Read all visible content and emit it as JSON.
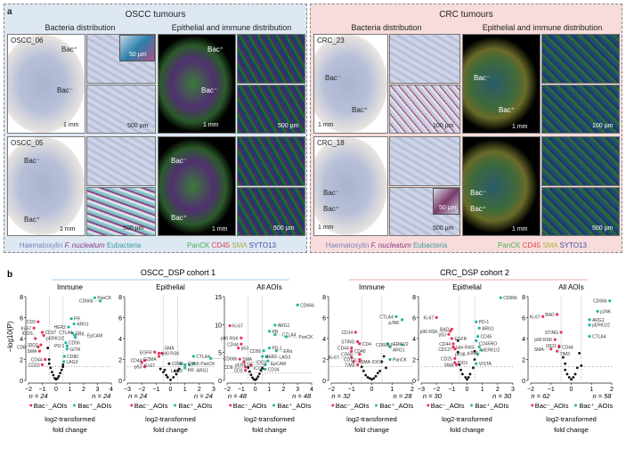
{
  "panel_a": {
    "label": "a",
    "oscc": {
      "title": "OSCC tumours",
      "col1": "Bacteria distribution",
      "col2": "Epithelial and immune distribution",
      "rows": [
        {
          "sample": "OSCC_06",
          "bac_pos": "Bac⁺",
          "bac_neg": "Bac⁻",
          "scale_overview": "1 mm",
          "scale_zoom": "500 µm",
          "scale_inset": "50 µm"
        },
        {
          "sample": "OSCC_05",
          "bac_pos": "Bac⁺",
          "bac_neg": "Bac⁻",
          "scale_overview": "1 mm",
          "scale_zoom": "500 µm"
        }
      ],
      "legend_left": [
        "Haematoxylin",
        "F. nucleatum",
        "Eubacteria"
      ],
      "legend_right": [
        "PanCK",
        "CD45",
        "SMA",
        "SYTO13"
      ]
    },
    "crc": {
      "title": "CRC tumours",
      "col1": "Bacteria distribution",
      "col2": "Epithelial and immune distribution",
      "rows": [
        {
          "sample": "CRC_23",
          "bac_pos": "Bac⁺",
          "bac_neg": "Bac⁻",
          "scale_overview": "1 mm",
          "scale_zoom": "100 µm"
        },
        {
          "sample": "CRC_18",
          "bac_pos": "Bac⁺",
          "bac_neg": "Bac⁻",
          "scale_overview": "1 mm",
          "scale_zoom": "500 µm",
          "scale_inset": "50 µm"
        }
      ],
      "legend_left": [
        "Haematoxylin",
        "F. nucleatum",
        "Eubacteria"
      ],
      "legend_right": [
        "PanCK",
        "CD45",
        "SMA",
        "SYTO13"
      ]
    },
    "colors": {
      "haematoxylin": "#7b80b8",
      "fnucleatum": "#8a3a8a",
      "eubacteria": "#3a9c9c",
      "panck": "#4caf50",
      "cd45": "#e04545",
      "sma": "#b0b040",
      "syto13": "#4050a0",
      "oscc_bg": "#dde8f3",
      "crc_bg": "#f8dcdc"
    }
  },
  "panel_b": {
    "label": "b",
    "cohort1": "OSCC_DSP cohort 1",
    "cohort2": "CRC_DSP cohort 2",
    "ylabel": "−log10(P)",
    "xlabel1": "log2-transformed",
    "xlabel2": "fold change",
    "legend_neg": "Bac⁻_AOIs",
    "legend_pos": "Bac⁺_AOIs",
    "colors": {
      "neg": "#e8335a",
      "pos": "#1fb5a5",
      "ns": "#111111"
    }
  },
  "chart_data": [
    {
      "type": "scatter",
      "title": "Immune",
      "xlim": [
        -2,
        4
      ],
      "ylim": [
        0,
        8
      ],
      "xticks": [
        -2,
        -1,
        0,
        1,
        2,
        3,
        4
      ],
      "yticks": [
        0,
        2,
        4,
        6,
        8
      ],
      "n_neg": "n = 24",
      "n_pos": "n = 24",
      "pos": [
        [
          "PanCK",
          2.8,
          7.9
        ],
        [
          "CD66b",
          3.2,
          7.6
        ],
        [
          "PR",
          1.1,
          5.9
        ],
        [
          "ARG1",
          1.3,
          5.4
        ],
        [
          "HER2",
          0.9,
          5.1
        ],
        [
          "ERα",
          1.2,
          4.5
        ],
        [
          "EpCAM",
          1.35,
          4.3
        ],
        [
          "CTLA4",
          1.4,
          4.1
        ],
        [
          "CD56",
          0.7,
          3.6
        ],
        [
          "PD-1",
          0.8,
          3.3
        ],
        [
          "GITR",
          0.8,
          3.0
        ],
        [
          "CD80",
          0.6,
          2.3
        ],
        [
          "LAG3",
          0.55,
          1.8
        ]
      ],
      "neg": [
        [
          "CD3",
          -1.3,
          5.6
        ],
        [
          "Ki-67",
          -1.6,
          5.0
        ],
        [
          "CD27",
          -1.0,
          4.6
        ],
        [
          "pERK1/2",
          -0.9,
          4.3
        ],
        [
          "ICOS",
          -1.5,
          4.0
        ],
        [
          "IDO1",
          -1.1,
          3.4
        ],
        [
          "CD8",
          -1.3,
          3.2
        ],
        [
          "SMA",
          -1.2,
          2.8
        ],
        [
          "CD44",
          -0.8,
          2.0
        ],
        [
          "CD20",
          -1.0,
          1.5
        ]
      ],
      "ns": [
        [
          -0.6,
          3.1
        ],
        [
          -0.5,
          2.0
        ],
        [
          -0.5,
          1.6
        ],
        [
          -0.4,
          1.2
        ],
        [
          -0.3,
          0.8
        ],
        [
          -0.2,
          0.5
        ],
        [
          -0.1,
          0.2
        ],
        [
          0,
          0.1
        ],
        [
          0.1,
          0.2
        ],
        [
          0.2,
          0.4
        ],
        [
          0.3,
          0.7
        ],
        [
          0.4,
          1.0
        ],
        [
          0.5,
          1.3
        ],
        [
          0.5,
          1.5
        ]
      ]
    },
    {
      "type": "scatter",
      "title": "Epithelial",
      "xlim": [
        -3,
        3
      ],
      "ylim": [
        0,
        8
      ],
      "xticks": [
        -3,
        -2,
        -1,
        0,
        1,
        2,
        3
      ],
      "yticks": [
        0,
        2,
        4,
        6,
        8
      ],
      "n_neg": "n = 24",
      "n_pos": "n = 24",
      "pos": [
        [
          "CD56",
          0.7,
          1.6
        ],
        [
          "PR",
          1.0,
          1.5
        ],
        [
          "CTLA4",
          1.6,
          2.3
        ],
        [
          "CD66b",
          2.8,
          2.1
        ],
        [
          "ARG1",
          1.3,
          1.5
        ],
        [
          "PanCK",
          1.6,
          1.6
        ],
        [
          "LAG3",
          1.0,
          1.2
        ]
      ],
      "neg": [
        [
          "EGFR",
          -1.1,
          2.7
        ],
        [
          "p90 RSK",
          -0.8,
          2.6
        ],
        [
          "SMA",
          -0.6,
          2.6
        ],
        [
          "GZMA",
          -0.8,
          2.3
        ],
        [
          "CD44",
          -1.8,
          1.9
        ],
        [
          "Ki-67",
          -2.0,
          1.7
        ],
        [
          "p53",
          -1.8,
          1.3
        ]
      ],
      "ns": [
        [
          "CD68",
          -0.1,
          1.6
        ],
        [
          -0.7,
          1.1
        ],
        [
          -0.5,
          0.8
        ],
        [
          -0.3,
          0.5
        ],
        [
          -0.2,
          0.3
        ],
        [
          0,
          0.05
        ],
        [
          0.2,
          0.3
        ],
        [
          0.4,
          0.6
        ],
        [
          0.5,
          0.9
        ],
        [
          0.6,
          1.1
        ],
        [
          0.3,
          0.9
        ],
        [
          -0.4,
          1.0
        ]
      ]
    },
    {
      "type": "scatter",
      "title": "All AOIs",
      "xlim": [
        -2,
        4
      ],
      "ylim": [
        0,
        15
      ],
      "xticks": [
        -2,
        -1,
        0,
        1,
        2,
        3,
        4
      ],
      "yticks": [
        0,
        5,
        10,
        15
      ],
      "n_neg": "n = 48",
      "n_pos": "n = 48",
      "pos": [
        [
          "CD66b",
          3.0,
          13.5
        ],
        [
          "ARG1",
          1.4,
          9.9
        ],
        [
          "PR",
          1.0,
          8.8
        ],
        [
          "CTLA4",
          1.4,
          8.2
        ],
        [
          "PanCK",
          2.2,
          7.8
        ],
        [
          "PD-1",
          1.0,
          5.8
        ],
        [
          "CD56",
          0.6,
          5.3
        ],
        [
          "ERα",
          1.5,
          5.3
        ],
        [
          "HER2",
          0.5,
          4.3
        ],
        [
          "LAG3",
          0.8,
          4.2
        ],
        [
          "EpCAM",
          0.9,
          3.5
        ],
        [
          "pERK1/2",
          0.7,
          2.8
        ],
        [
          "CD34",
          0.7,
          2.0
        ]
      ],
      "neg": [
        [
          "Ki-67",
          -1.8,
          9.8
        ],
        [
          "p90 RSK",
          -1.0,
          7.6
        ],
        [
          "CD44",
          -1.0,
          6.5
        ],
        [
          "p53",
          -1.2,
          5.8
        ],
        [
          "SMA",
          -1.1,
          3.8
        ],
        [
          "IDO1",
          -0.8,
          3.3
        ],
        [
          "ICOS",
          -0.3,
          2.7
        ],
        [
          "CD8",
          -0.7,
          2.4
        ],
        [
          "CD3",
          -0.7,
          1.8
        ]
      ],
      "ns": [
        [
          -0.5,
          2.3
        ],
        [
          -0.4,
          1.6
        ],
        [
          -0.3,
          1.0
        ],
        [
          -0.2,
          0.5
        ],
        [
          -0.1,
          0.2
        ],
        [
          0,
          0.1
        ],
        [
          0.1,
          0.3
        ],
        [
          0.2,
          0.7
        ],
        [
          0.3,
          1.2
        ],
        [
          0.4,
          1.8
        ],
        [
          0.5,
          2.2
        ]
      ]
    },
    {
      "type": "scatter",
      "title": "Immune",
      "xlim": [
        -2,
        2
      ],
      "ylim": [
        0,
        8
      ],
      "xticks": [
        -2,
        -1,
        0,
        1,
        2
      ],
      "yticks": [
        0,
        2,
        4,
        6,
        8
      ],
      "n_neg": "n = 32",
      "n_pos": "n = 28",
      "pos": [
        [
          "CTLA4",
          1.2,
          6.1
        ],
        [
          "pJNK",
          1.5,
          5.8
        ],
        [
          "pERK1/2",
          0.8,
          3.5
        ],
        [
          "CD66b",
          1.5,
          3.4
        ],
        [
          "ARG1",
          0.9,
          3.2
        ],
        [
          "PanCK",
          0.9,
          2.0
        ]
      ],
      "neg": [
        [
          "CD14",
          -0.8,
          4.6
        ],
        [
          "STING",
          -0.7,
          3.7
        ],
        [
          "CD4",
          -0.6,
          3.5
        ],
        [
          "CD44",
          -1.0,
          3.1
        ],
        [
          "CD40",
          -1.0,
          2.8
        ],
        [
          "CD68",
          -0.6,
          2.5
        ],
        [
          "Ki-67",
          -1.0,
          2.2
        ],
        [
          "CD11c",
          -0.6,
          2.0
        ],
        [
          "SMA",
          -0.9,
          1.8
        ],
        [
          "IDO1",
          -0.6,
          1.8
        ],
        [
          "TIM3",
          -0.7,
          1.5
        ]
      ],
      "ns": [
        [
          -0.5,
          1.3
        ],
        [
          -0.4,
          0.9
        ],
        [
          -0.3,
          0.5
        ],
        [
          -0.2,
          0.3
        ],
        [
          -0.1,
          0.2
        ],
        [
          0,
          0.1
        ],
        [
          0.1,
          0.2
        ],
        [
          0.2,
          0.4
        ],
        [
          0.3,
          0.7
        ],
        [
          0.4,
          0.9
        ],
        [
          0.5,
          1.8
        ],
        [
          0.6,
          2.3
        ],
        [
          0.7,
          1.2
        ]
      ]
    },
    {
      "type": "scatter",
      "title": "Epithelial",
      "xlim": [
        -3,
        3
      ],
      "ylim": [
        0,
        8
      ],
      "xticks": [
        -3,
        -2,
        -1,
        0,
        1,
        2,
        3
      ],
      "yticks": [
        0,
        2,
        4,
        6,
        8
      ],
      "n_neg": "n = 30",
      "n_pos": "n = 30",
      "pos": [
        [
          "CD66b",
          2.2,
          7.9
        ],
        [
          "PD-1",
          0.6,
          5.6
        ],
        [
          "ARG1",
          0.8,
          5.0
        ],
        [
          "CD45",
          0.7,
          4.2
        ],
        [
          "CD45RO",
          0.6,
          3.8
        ],
        [
          "pERK1/2",
          0.8,
          3.2
        ],
        [
          "pJNK",
          0.9,
          2.9
        ],
        [
          "pP38",
          0.7,
          2.5
        ],
        [
          "VISTA",
          0.6,
          1.6
        ]
      ],
      "neg": [
        [
          "Ki-67",
          -2.0,
          6.0
        ],
        [
          "BAD",
          -1.0,
          4.9
        ],
        [
          "p90 RSK",
          -1.1,
          4.7
        ],
        [
          "p53",
          -1.2,
          4.4
        ],
        [
          "EGFR",
          -1.0,
          4.0
        ],
        [
          "CD44",
          -0.9,
          3.5
        ],
        [
          "pan-RAS",
          -0.9,
          3.2
        ],
        [
          "CD127",
          -0.8,
          3.0
        ],
        [
          "CD25",
          -0.8,
          2.1
        ],
        [
          "IDO1",
          -0.8,
          1.7
        ],
        [
          "SMA",
          -0.7,
          1.5
        ]
      ],
      "ns": [
        [
          -0.6,
          3.8
        ],
        [
          -0.6,
          2.7
        ],
        [
          -0.5,
          1.5
        ],
        [
          -0.4,
          1.0
        ],
        [
          -0.3,
          0.6
        ],
        [
          -0.1,
          0.3
        ],
        [
          0,
          0.1
        ],
        [
          0.1,
          0.3
        ],
        [
          0.2,
          0.6
        ],
        [
          0.4,
          1.2
        ],
        [
          0.5,
          2.0
        ],
        [
          0.5,
          2.8
        ]
      ]
    },
    {
      "type": "scatter",
      "title": "All AOIs",
      "xlim": [
        -2,
        2
      ],
      "ylim": [
        0,
        8
      ],
      "xticks": [
        -2,
        -1,
        0,
        1,
        2
      ],
      "yticks": [
        0,
        2,
        4,
        6,
        8
      ],
      "n_neg": "n = 62",
      "n_pos": "n = 58",
      "pos": [
        [
          "CD66b",
          1.9,
          7.6
        ],
        [
          "pJNK",
          1.3,
          6.6
        ],
        [
          "ARG1",
          0.9,
          5.8
        ],
        [
          "pERK1/2",
          0.9,
          5.3
        ],
        [
          "CTLA4",
          0.9,
          4.2
        ]
      ],
      "neg": [
        [
          "Ki-67",
          -1.4,
          6.1
        ],
        [
          "BAD",
          -0.7,
          6.3
        ],
        [
          "STING",
          -0.5,
          4.6
        ],
        [
          "p90 RSK",
          -0.8,
          3.9
        ],
        [
          "IDO1",
          -0.6,
          3.3
        ],
        [
          "SMA",
          -1.0,
          3.0
        ],
        [
          "TIM3",
          -0.7,
          2.8
        ]
      ],
      "ns": [
        [
          "CD44",
          -0.6,
          3.2
        ],
        [
          -0.4,
          2.2
        ],
        [
          -0.3,
          1.6
        ],
        [
          -0.3,
          1.0
        ],
        [
          -0.2,
          0.6
        ],
        [
          -0.1,
          0.3
        ],
        [
          0,
          0.1
        ],
        [
          0.1,
          0.3
        ],
        [
          0.2,
          0.6
        ],
        [
          0.3,
          1.2
        ],
        [
          0.4,
          2.6
        ],
        [
          0.5,
          1.4
        ]
      ]
    }
  ]
}
